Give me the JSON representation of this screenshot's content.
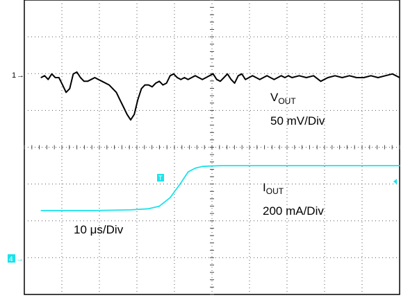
{
  "chart_data": {
    "type": "line",
    "grid": true,
    "divisions": {
      "x": 10,
      "y": 8
    },
    "channels": [
      {
        "name": "VOUT",
        "marker_label": "1",
        "color": "#000000",
        "scale": "50 mV/Div",
        "x_div": [
          0.0,
          0.1,
          0.2,
          0.3,
          0.4,
          0.5,
          0.6,
          0.7,
          0.8,
          0.9,
          1.0,
          1.1,
          1.2,
          1.3,
          1.4,
          1.5,
          1.6,
          1.7,
          1.8,
          1.9,
          2.0,
          2.1,
          2.2,
          2.3,
          2.4,
          2.5,
          2.6,
          2.7,
          2.8,
          2.9,
          3.0,
          3.1,
          3.2,
          3.3,
          3.4,
          3.5,
          3.6,
          3.7,
          3.8,
          3.9,
          4.0,
          4.1,
          4.2,
          4.3,
          4.4,
          4.5,
          4.6,
          4.7,
          4.8,
          4.9,
          5.0,
          5.1,
          5.2,
          5.3,
          5.4,
          5.5,
          5.6,
          5.7,
          5.8,
          5.9,
          6.0,
          6.1,
          6.2,
          6.3,
          6.4,
          6.5,
          6.6,
          6.7,
          6.8,
          6.9,
          7.0,
          7.2,
          7.4,
          7.6,
          7.8,
          8.0,
          8.2,
          8.4,
          8.6,
          8.8,
          9.0,
          9.2,
          9.4,
          9.6,
          9.8,
          10.0
        ],
        "y_div": [
          0.0,
          0.05,
          -0.05,
          0.1,
          0.0,
          0.0,
          -0.2,
          -0.4,
          -0.3,
          0.1,
          0.15,
          0.0,
          -0.1,
          -0.1,
          -0.05,
          0.0,
          -0.05,
          -0.1,
          -0.15,
          -0.2,
          -0.3,
          -0.4,
          -0.6,
          -0.8,
          -1.0,
          -1.15,
          -1.0,
          -0.6,
          -0.3,
          -0.2,
          -0.2,
          -0.25,
          -0.15,
          -0.1,
          -0.2,
          -0.15,
          0.05,
          0.1,
          0.0,
          -0.05,
          0.0,
          -0.05,
          0.0,
          0.05,
          0.0,
          -0.05,
          0.0,
          0.05,
          0.1,
          -0.05,
          -0.1,
          0.0,
          0.1,
          -0.05,
          -0.15,
          0.05,
          0.1,
          -0.05,
          0.0,
          0.05,
          0.0,
          -0.05,
          0.0,
          0.05,
          0.0,
          -0.05,
          0.0,
          0.05,
          0.0,
          0.05,
          0.0,
          0.05,
          0.0,
          0.05,
          -0.1,
          0.0,
          0.05,
          0.0,
          0.05,
          0.0,
          0.0,
          0.05,
          0.0,
          0.05,
          0.1,
          0.0
        ]
      },
      {
        "name": "IOUT",
        "marker_label": "4",
        "color": "#19e3ec",
        "scale": "200 mA/Div",
        "x_div": [
          0.0,
          0.5,
          1.0,
          1.5,
          2.0,
          2.5,
          3.0,
          3.3,
          3.6,
          3.9,
          4.1,
          4.3,
          4.5,
          4.7,
          5.0,
          5.5,
          6.0,
          7.0,
          8.0,
          9.0,
          10.0
        ],
        "y_div": [
          1.3,
          1.3,
          1.3,
          1.3,
          1.31,
          1.32,
          1.35,
          1.42,
          1.65,
          2.05,
          2.35,
          2.45,
          2.5,
          2.51,
          2.52,
          2.52,
          2.52,
          2.52,
          2.52,
          2.52,
          2.52
        ]
      }
    ]
  },
  "annotations": {
    "vout_name": "V",
    "vout_sub": "OUT",
    "vout_scale": "50 mV/Div",
    "iout_name": "I",
    "iout_sub": "OUT",
    "iout_scale": "200 mA/Div",
    "timebase": "10 μs/Div",
    "ch1_marker": "1",
    "ch4_marker": "4",
    "trigger_marker": "T"
  }
}
